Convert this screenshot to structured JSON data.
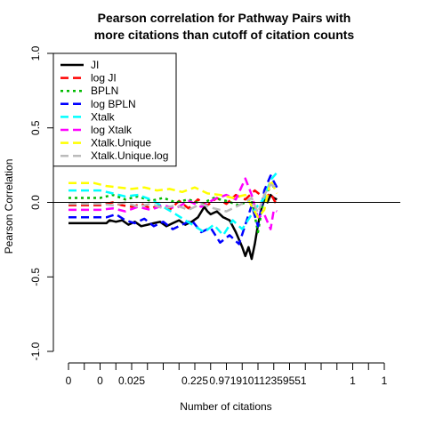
{
  "chart_data": {
    "type": "line",
    "title": [
      "Pearson correlation for Pathway Pairs with",
      "more citations than cutoff of citation counts"
    ],
    "xlabel": "Number of citations",
    "ylabel": "Pearson Correlation",
    "ylim": [
      -1.0,
      1.0
    ],
    "xlim": [
      0,
      100
    ],
    "yticks": [
      -1.0,
      -0.5,
      0.0,
      0.5,
      1.0
    ],
    "ytick_labels": [
      "-1.0",
      "-0.5",
      "0.0",
      "0.5",
      "1.0"
    ],
    "xticks": [
      0,
      5,
      10,
      15,
      20,
      25,
      30,
      35,
      40,
      45,
      50,
      55,
      60,
      65,
      70,
      75,
      80,
      85,
      90,
      95,
      100
    ],
    "xtick_labels": [
      {
        "at": 0,
        "label": "0"
      },
      {
        "at": 10,
        "label": "0"
      },
      {
        "at": 20,
        "label": "0.025"
      },
      {
        "at": 40,
        "label": "0.225"
      },
      {
        "at": 60,
        "label": "0.9719101123595​51"
      },
      {
        "at": 90,
        "label": "1"
      },
      {
        "at": 100,
        "label": "1"
      }
    ],
    "hline": 0.0,
    "legend_position": "top-left",
    "series": [
      {
        "name": "JI",
        "color": "#000000",
        "dash": "solid",
        "width": 2.5,
        "x": [
          0,
          12,
          13,
          15,
          17,
          19,
          21,
          23,
          25,
          27,
          29,
          31,
          33,
          35,
          37,
          39,
          41,
          43,
          44,
          45,
          47,
          49,
          51,
          53,
          54,
          55,
          56,
          57,
          58,
          59,
          60,
          61,
          62,
          63,
          64,
          65,
          66
        ],
        "y": [
          -0.14,
          -0.14,
          -0.12,
          -0.13,
          -0.12,
          -0.15,
          -0.13,
          -0.16,
          -0.15,
          -0.14,
          -0.13,
          -0.16,
          -0.14,
          -0.12,
          -0.15,
          -0.13,
          -0.1,
          -0.03,
          -0.06,
          -0.08,
          -0.06,
          -0.1,
          -0.12,
          -0.2,
          -0.25,
          -0.3,
          -0.36,
          -0.3,
          -0.38,
          -0.28,
          -0.15,
          -0.05,
          0.02,
          0.0,
          0.05,
          0.03,
          0.02
        ]
      },
      {
        "name": "log JI",
        "color": "#ff0000",
        "dash": "dashed",
        "width": 2.5,
        "x": [
          0,
          10,
          14,
          17,
          20,
          23,
          26,
          29,
          32,
          35,
          38,
          41,
          44,
          47,
          50,
          53,
          56,
          59,
          62,
          64,
          66
        ],
        "y": [
          -0.02,
          -0.02,
          0.0,
          -0.02,
          -0.03,
          -0.01,
          -0.04,
          -0.02,
          -0.05,
          0.01,
          -0.04,
          0.02,
          -0.02,
          0.03,
          -0.01,
          0.05,
          0.02,
          0.08,
          0.03,
          0.06,
          -0.02
        ]
      },
      {
        "name": "BPLN",
        "color": "#00bb00",
        "dash": "dotted",
        "width": 2.5,
        "x": [
          0,
          10,
          14,
          18,
          22,
          26,
          30,
          34,
          38,
          42,
          46,
          50,
          54,
          58,
          60,
          62,
          64,
          66
        ],
        "y": [
          0.03,
          0.03,
          0.05,
          0.02,
          0.04,
          0.01,
          0.03,
          0.0,
          0.02,
          -0.01,
          0.03,
          0.01,
          -0.02,
          0.02,
          -0.2,
          0.05,
          0.1,
          0.12
        ]
      },
      {
        "name": "log BPLN",
        "color": "#0000ff",
        "dash": "dashed",
        "width": 2.5,
        "x": [
          0,
          12,
          15,
          18,
          21,
          24,
          27,
          30,
          33,
          36,
          39,
          42,
          45,
          48,
          51,
          54,
          56,
          58,
          60,
          62,
          64,
          66
        ],
        "y": [
          -0.1,
          -0.1,
          -0.08,
          -0.12,
          -0.14,
          -0.11,
          -0.16,
          -0.13,
          -0.18,
          -0.15,
          -0.12,
          -0.2,
          -0.17,
          -0.27,
          -0.22,
          -0.28,
          -0.15,
          -0.02,
          -0.16,
          0.08,
          0.18,
          0.1
        ]
      },
      {
        "name": "Xtalk",
        "color": "#00ffff",
        "dash": "dashed",
        "width": 2.5,
        "x": [
          0,
          10,
          14,
          18,
          22,
          26,
          30,
          34,
          37,
          40,
          43,
          46,
          49,
          52,
          55,
          58,
          60,
          62,
          64,
          66
        ],
        "y": [
          0.08,
          0.08,
          0.06,
          0.04,
          0.05,
          0.02,
          -0.03,
          -0.08,
          -0.12,
          -0.16,
          -0.2,
          -0.15,
          -0.22,
          -0.12,
          -0.18,
          -0.08,
          -0.02,
          0.03,
          0.15,
          0.2
        ]
      },
      {
        "name": "log Xtalk",
        "color": "#ff00ff",
        "dash": "dashed",
        "width": 2.5,
        "x": [
          0,
          10,
          14,
          18,
          22,
          26,
          30,
          34,
          38,
          42,
          46,
          50,
          53,
          56,
          58,
          60,
          62,
          64,
          65,
          66
        ],
        "y": [
          -0.05,
          -0.05,
          -0.04,
          -0.06,
          -0.03,
          -0.05,
          -0.02,
          -0.04,
          0.01,
          -0.03,
          0.02,
          0.05,
          0.02,
          0.16,
          0.05,
          -0.1,
          -0.08,
          -0.18,
          -0.05,
          -0.06
        ]
      },
      {
        "name": "Xtalk.Unique",
        "color": "#ffff00",
        "dash": "dashed",
        "width": 2.5,
        "x": [
          0,
          8,
          12,
          16,
          20,
          24,
          28,
          32,
          36,
          40,
          44,
          48,
          52,
          56,
          60,
          62,
          64,
          66
        ],
        "y": [
          0.13,
          0.13,
          0.11,
          0.1,
          0.09,
          0.1,
          0.08,
          0.09,
          0.07,
          0.1,
          0.06,
          0.05,
          0.03,
          0.05,
          -0.1,
          -0.05,
          0.15,
          0.06
        ]
      },
      {
        "name": "Xtalk.Unique.log",
        "color": "#bbbbbb",
        "dash": "dashed",
        "width": 2.5,
        "x": [
          0,
          10,
          14,
          18,
          22,
          26,
          30,
          34,
          38,
          42,
          46,
          50,
          54,
          58,
          60,
          62,
          64,
          66
        ],
        "y": [
          -0.01,
          -0.01,
          -0.02,
          0.0,
          -0.03,
          -0.01,
          -0.04,
          -0.02,
          -0.05,
          -0.01,
          -0.04,
          -0.06,
          -0.02,
          0.03,
          -0.07,
          0.05,
          0.12,
          0.1
        ]
      }
    ]
  }
}
